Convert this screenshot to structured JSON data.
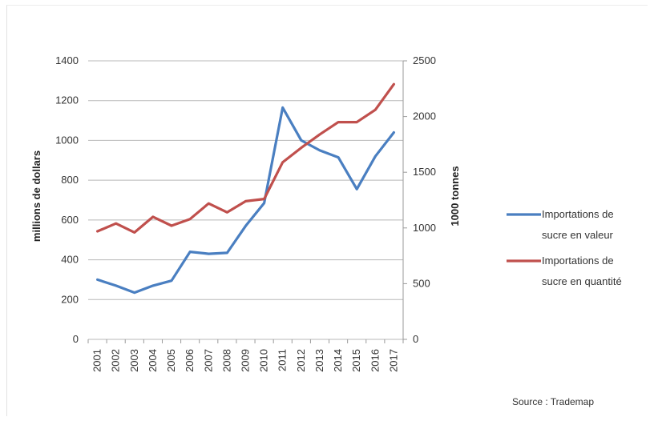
{
  "chart_data": {
    "type": "line",
    "categories": [
      "2001",
      "2002",
      "2003",
      "2004",
      "2005",
      "2006",
      "2007",
      "2008",
      "2009",
      "2010",
      "2011",
      "2012",
      "2013",
      "2014",
      "2015",
      "2016",
      "2017"
    ],
    "series": [
      {
        "name": "Importations de sucre en valeur",
        "axis": "left",
        "color": "#4a7fc1",
        "values": [
          300,
          270,
          235,
          270,
          295,
          440,
          430,
          435,
          570,
          685,
          1165,
          1000,
          950,
          915,
          755,
          920,
          1040
        ]
      },
      {
        "name": "Importations de sucre en quantité",
        "axis": "right",
        "color": "#c0504d",
        "values": [
          970,
          1040,
          960,
          1100,
          1020,
          1080,
          1220,
          1140,
          1240,
          1260,
          1590,
          1720,
          1840,
          1950,
          1950,
          2060,
          2290
        ]
      }
    ],
    "y_left": {
      "label": "millions de dollars",
      "ticks": [
        "0",
        "200",
        "400",
        "600",
        "800",
        "1000",
        "1200",
        "1400"
      ],
      "lim": [
        0,
        1400
      ]
    },
    "y_right": {
      "label": "1000 tonnes",
      "ticks": [
        "0",
        "500",
        "1000",
        "1500",
        "2000",
        "2500"
      ],
      "lim": [
        0,
        2500
      ]
    },
    "grid": true,
    "legend_position": "right",
    "legend_lines": [
      [
        "Importations de",
        "sucre en valeur"
      ],
      [
        "Importations de",
        "sucre en quantité"
      ]
    ],
    "source": "Source : Trademap"
  }
}
